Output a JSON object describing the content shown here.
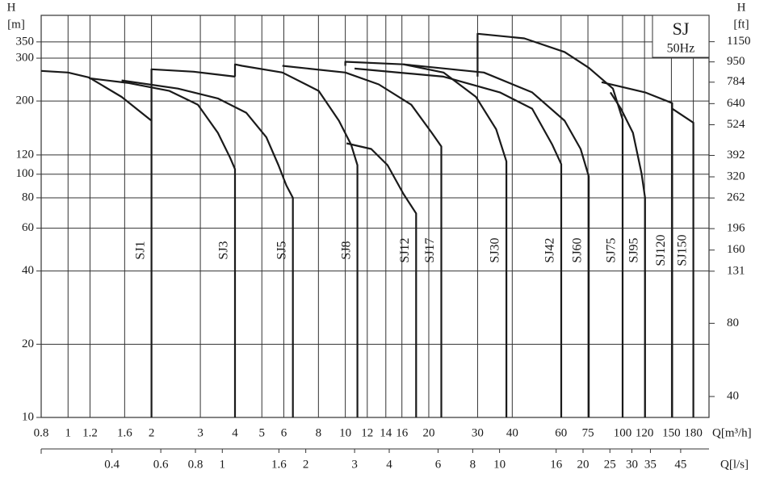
{
  "chart_data": {
    "type": "line",
    "title": "SJ",
    "subtitle": "50Hz",
    "y_label": "H",
    "y_unit": "[m]",
    "y2_label": "H",
    "y2_unit": "[ft]",
    "x_label": "Q[m³/h]",
    "x2_label": "Q[l/s]",
    "log_x": true,
    "log_y": true,
    "grid": true,
    "color": "#1a1a1a",
    "xlim": [
      0.8,
      205
    ],
    "xticks": [
      0.8,
      1,
      1.2,
      1.6,
      2,
      3,
      4,
      5,
      6,
      8,
      10,
      12,
      14,
      16,
      20,
      30,
      40,
      60,
      75,
      100,
      120,
      150,
      180
    ],
    "x2lim": [
      0.2222,
      56.94
    ],
    "x2ticks": [
      0.4,
      0.6,
      0.8,
      1,
      1.6,
      2,
      3,
      4,
      6,
      8,
      10,
      16,
      20,
      25,
      30,
      35,
      45
    ],
    "ylim": [
      10,
      450
    ],
    "yticks": [
      10,
      20,
      40,
      60,
      80,
      100,
      120,
      200,
      300,
      350
    ],
    "y2lim": [
      32.81,
      1476
    ],
    "y2ticks": [
      40,
      80,
      131,
      160,
      196,
      262,
      320,
      392,
      524,
      640,
      784,
      950,
      1150
    ],
    "series": [
      {
        "name": "SJ1",
        "x": [
          0.8,
          1,
          1.19,
          1.56,
          1.84,
          2,
          2
        ],
        "values": [
          266,
          262,
          250,
          208,
          179,
          166,
          10
        ]
      },
      {
        "name": "SJ3",
        "x": [
          1.19,
          1.66,
          2.32,
          2.94,
          3.47,
          3.84,
          4,
          4,
          null,
          2,
          2,
          2.84,
          4
        ],
        "values": [
          248,
          237,
          220,
          193,
          148,
          117,
          105,
          10,
          null,
          166,
          270,
          264,
          252
        ]
      },
      {
        "name": "SJ5",
        "x": [
          1.56,
          2.49,
          3.47,
          4.39,
          5.19,
          5.74,
          6.13,
          6.47,
          6.47
        ],
        "values": [
          243,
          225,
          205,
          179,
          142,
          109,
          90,
          80,
          10
        ]
      },
      {
        "name": "SJ8",
        "x": [
          4,
          4,
          4.24,
          5.93,
          8.02,
          9.48,
          10.5,
          11.06,
          11.06
        ],
        "values": [
          252,
          283,
          279,
          262,
          220,
          166,
          132,
          109,
          10
        ]
      },
      {
        "name": "SJ12",
        "x": [
          10.1,
          12.4,
          14.2,
          16.2,
          18,
          18
        ],
        "values": [
          134,
          127,
          109,
          83,
          69,
          10
        ]
      },
      {
        "name": "SJ17",
        "x": [
          5.93,
          10,
          13.2,
          17.3,
          20.5,
          22.2,
          22.2
        ],
        "values": [
          279,
          262,
          234,
          193,
          148,
          130,
          10
        ]
      },
      {
        "name": "SJ30",
        "x": [
          10,
          10,
          16.2,
          22.6,
          29.6,
          35,
          38.1,
          38.1
        ],
        "values": [
          279,
          290,
          283,
          262,
          208,
          153,
          113,
          10
        ]
      },
      {
        "name": "SJ42",
        "x": [
          10.8,
          22.6,
          36.1,
          47.2,
          55.8,
          60.1,
          60.1
        ],
        "values": [
          272,
          252,
          217,
          186,
          132,
          110,
          10
        ]
      },
      {
        "name": "SJ60",
        "x": [
          16.2,
          31.6,
          47.2,
          61.8,
          70.6,
          75.5,
          75.5
        ],
        "values": [
          283,
          262,
          217,
          166,
          127,
          98,
          10
        ]
      },
      {
        "name": "SJ75",
        "x": [
          30,
          30,
          44.2,
          61.8,
          75.5,
          92.3,
          100,
          100
        ],
        "values": [
          252,
          378,
          362,
          318,
          274,
          225,
          168,
          10
        ]
      },
      {
        "name": "SJ95",
        "x": [
          90.4,
          98.6,
          109,
          117,
          120.5,
          120.5
        ],
        "values": [
          217,
          186,
          148,
          101,
          80,
          10
        ]
      },
      {
        "name": "SJ120",
        "x": [
          84,
          120.5,
          151,
          151
        ],
        "values": [
          239,
          217,
          196,
          10
        ]
      },
      {
        "name": "SJ150",
        "x": [
          151,
          180,
          180
        ],
        "values": [
          186,
          163,
          10
        ]
      }
    ]
  }
}
